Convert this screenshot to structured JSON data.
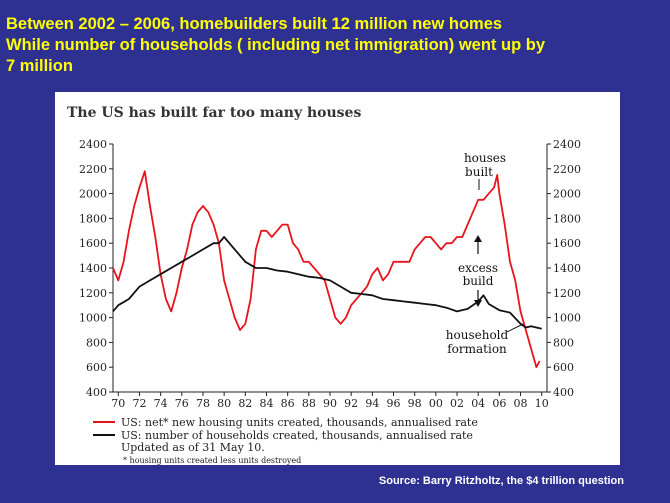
{
  "headline": {
    "line1": "Between 2002 – 2006, homebuilders built 12 million new homes",
    "line2": "While number of households ( including net immigration) went up by",
    "line3": "7 million"
  },
  "source": "Source: Barry Ritzholtz, the $4 trillion question",
  "colors": {
    "background": "#2e3192",
    "headline": "#ffff00",
    "red_series": "#e8141c",
    "black_series": "#111111"
  },
  "chart_data": {
    "type": "line",
    "title": "The US has built far too many houses",
    "ylim": [
      400,
      2400
    ],
    "y_ticks": [
      "400",
      "600",
      "800",
      "1000",
      "1200",
      "1400",
      "1600",
      "1800",
      "2000",
      "2200",
      "2400"
    ],
    "x_ticks": [
      "70",
      "72",
      "74",
      "76",
      "78",
      "80",
      "82",
      "84",
      "86",
      "88",
      "90",
      "92",
      "94",
      "96",
      "98",
      "00",
      "02",
      "04",
      "06",
      "08",
      "10"
    ],
    "xlim": [
      1969.5,
      2010.5
    ],
    "grid": false,
    "annotations": [
      {
        "label": "houses built",
        "lines": [
          "houses",
          "built"
        ]
      },
      {
        "label": "excess build",
        "lines": [
          "excess",
          "build"
        ]
      },
      {
        "label": "household formation",
        "lines": [
          "household",
          "formation"
        ]
      }
    ],
    "legend": {
      "placement": "bottom",
      "entries": [
        {
          "color": "#e8141c",
          "text": "US: net* new housing units created, thousands, annualised rate"
        },
        {
          "color": "#111111",
          "text": "US: number of households created, thousands, annualised rate"
        }
      ],
      "updated": "Updated as of 31 May 10.",
      "footnote": "* housing units created less units destroyed"
    },
    "series": [
      {
        "color": "#e8141c",
        "points": [
          [
            1969.5,
            1400
          ],
          [
            1970.0,
            1300
          ],
          [
            1970.5,
            1450
          ],
          [
            1971.0,
            1700
          ],
          [
            1971.5,
            1900
          ],
          [
            1972.0,
            2050
          ],
          [
            1972.5,
            2180
          ],
          [
            1973.0,
            1900
          ],
          [
            1973.5,
            1650
          ],
          [
            1974.0,
            1350
          ],
          [
            1974.5,
            1150
          ],
          [
            1975.0,
            1050
          ],
          [
            1975.5,
            1200
          ],
          [
            1976.0,
            1400
          ],
          [
            1976.5,
            1550
          ],
          [
            1977.0,
            1750
          ],
          [
            1977.5,
            1850
          ],
          [
            1978.0,
            1900
          ],
          [
            1978.5,
            1850
          ],
          [
            1979.0,
            1750
          ],
          [
            1979.5,
            1600
          ],
          [
            1980.0,
            1300
          ],
          [
            1980.5,
            1150
          ],
          [
            1981.0,
            1000
          ],
          [
            1981.5,
            900
          ],
          [
            1982.0,
            950
          ],
          [
            1982.5,
            1150
          ],
          [
            1983.0,
            1550
          ],
          [
            1983.5,
            1700
          ],
          [
            1984.0,
            1700
          ],
          [
            1984.5,
            1650
          ],
          [
            1985.0,
            1700
          ],
          [
            1985.5,
            1750
          ],
          [
            1986.0,
            1750
          ],
          [
            1986.5,
            1600
          ],
          [
            1987.0,
            1550
          ],
          [
            1987.5,
            1450
          ],
          [
            1988.0,
            1450
          ],
          [
            1988.5,
            1400
          ],
          [
            1989.0,
            1350
          ],
          [
            1989.5,
            1300
          ],
          [
            1990.0,
            1150
          ],
          [
            1990.5,
            1000
          ],
          [
            1991.0,
            950
          ],
          [
            1991.5,
            1000
          ],
          [
            1992.0,
            1100
          ],
          [
            1992.5,
            1150
          ],
          [
            1993.0,
            1200
          ],
          [
            1993.5,
            1250
          ],
          [
            1994.0,
            1350
          ],
          [
            1994.5,
            1400
          ],
          [
            1995.0,
            1300
          ],
          [
            1995.5,
            1350
          ],
          [
            1996.0,
            1450
          ],
          [
            1996.5,
            1450
          ],
          [
            1997.0,
            1450
          ],
          [
            1997.5,
            1450
          ],
          [
            1998.0,
            1550
          ],
          [
            1998.5,
            1600
          ],
          [
            1999.0,
            1650
          ],
          [
            1999.5,
            1650
          ],
          [
            2000.0,
            1600
          ],
          [
            2000.5,
            1550
          ],
          [
            2001.0,
            1600
          ],
          [
            2001.5,
            1600
          ],
          [
            2002.0,
            1650
          ],
          [
            2002.5,
            1650
          ],
          [
            2003.0,
            1750
          ],
          [
            2003.5,
            1850
          ],
          [
            2004.0,
            1950
          ],
          [
            2004.5,
            1950
          ],
          [
            2005.0,
            2000
          ],
          [
            2005.5,
            2050
          ],
          [
            2005.8,
            2150
          ],
          [
            2006.0,
            2000
          ],
          [
            2006.5,
            1750
          ],
          [
            2007.0,
            1450
          ],
          [
            2007.5,
            1300
          ],
          [
            2008.0,
            1050
          ],
          [
            2008.5,
            900
          ],
          [
            2009.0,
            750
          ],
          [
            2009.5,
            600
          ],
          [
            2009.8,
            650
          ]
        ]
      },
      {
        "color": "#111111",
        "points": [
          [
            1969.5,
            1050
          ],
          [
            1970.0,
            1100
          ],
          [
            1971.0,
            1150
          ],
          [
            1972.0,
            1250
          ],
          [
            1973.0,
            1300
          ],
          [
            1974.0,
            1350
          ],
          [
            1975.0,
            1400
          ],
          [
            1976.0,
            1450
          ],
          [
            1977.0,
            1500
          ],
          [
            1978.0,
            1550
          ],
          [
            1979.0,
            1600
          ],
          [
            1979.5,
            1600
          ],
          [
            1980.0,
            1650
          ],
          [
            1980.5,
            1600
          ],
          [
            1981.0,
            1550
          ],
          [
            1981.5,
            1500
          ],
          [
            1982.0,
            1450
          ],
          [
            1983.0,
            1400
          ],
          [
            1984.0,
            1400
          ],
          [
            1985.0,
            1380
          ],
          [
            1986.0,
            1370
          ],
          [
            1987.0,
            1350
          ],
          [
            1988.0,
            1330
          ],
          [
            1989.0,
            1320
          ],
          [
            1990.0,
            1300
          ],
          [
            1991.0,
            1250
          ],
          [
            1992.0,
            1200
          ],
          [
            1993.0,
            1190
          ],
          [
            1994.0,
            1180
          ],
          [
            1995.0,
            1150
          ],
          [
            1996.0,
            1140
          ],
          [
            1997.0,
            1130
          ],
          [
            1998.0,
            1120
          ],
          [
            1999.0,
            1110
          ],
          [
            2000.0,
            1100
          ],
          [
            2001.0,
            1080
          ],
          [
            2002.0,
            1050
          ],
          [
            2003.0,
            1070
          ],
          [
            2004.0,
            1130
          ],
          [
            2004.5,
            1180
          ],
          [
            2005.0,
            1110
          ],
          [
            2006.0,
            1060
          ],
          [
            2007.0,
            1040
          ],
          [
            2008.0,
            950
          ],
          [
            2008.5,
            920
          ],
          [
            2009.0,
            930
          ],
          [
            2010.0,
            910
          ]
        ]
      }
    ]
  }
}
